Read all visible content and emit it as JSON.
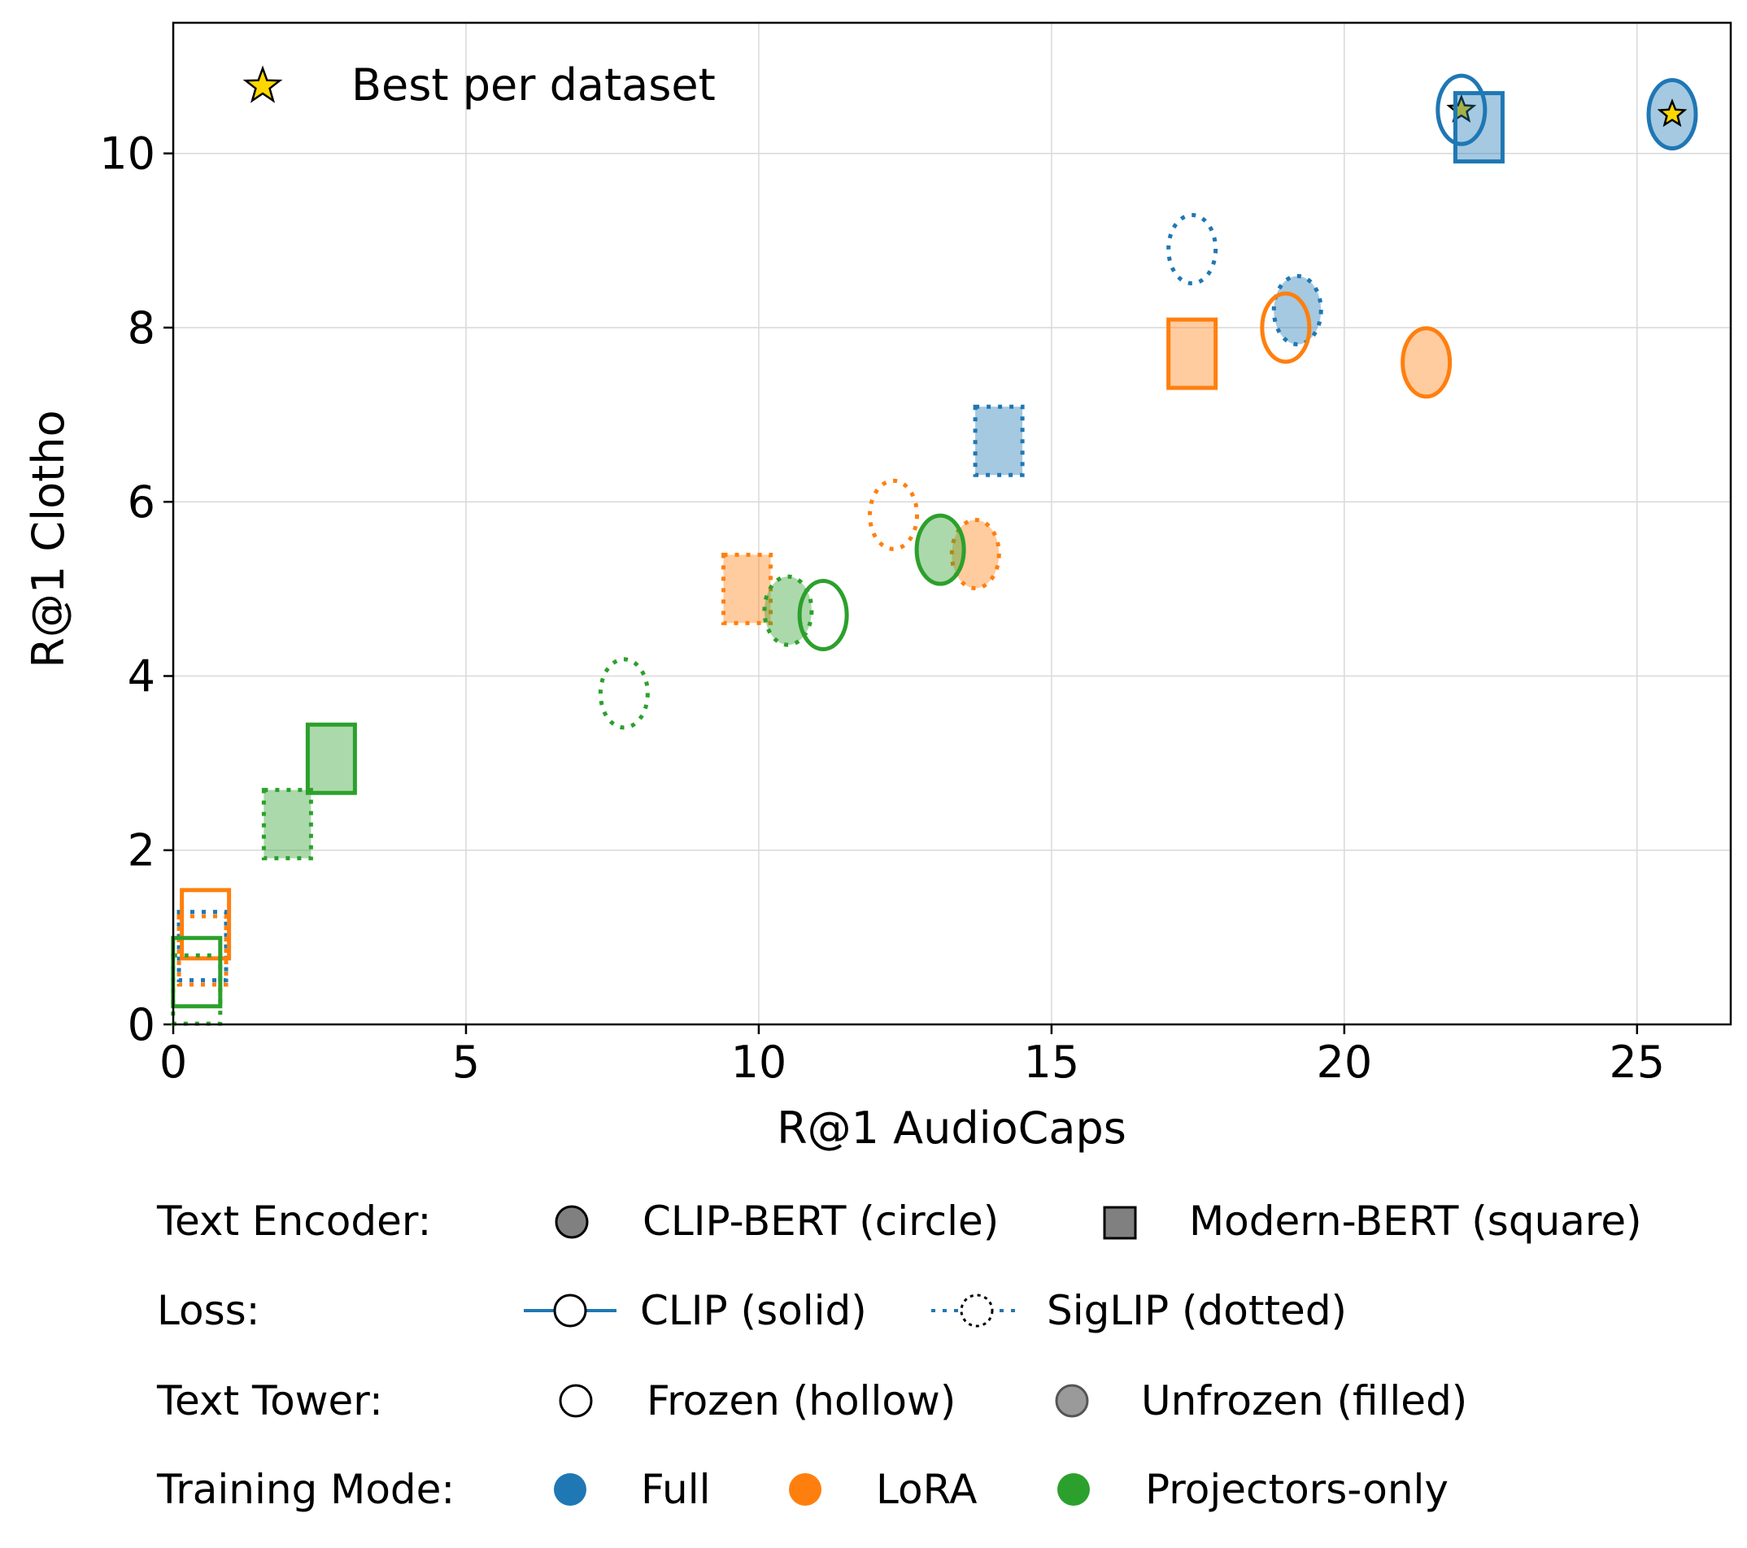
{
  "chart_data": {
    "type": "scatter",
    "title": "",
    "xlabel": "R@1 AudioCaps",
    "ylabel": "R@1 Clotho",
    "xlim": [
      0,
      26.6
    ],
    "ylim": [
      0,
      11.5
    ],
    "xticks": [
      0,
      5,
      10,
      15,
      20,
      25
    ],
    "yticks": [
      0,
      2,
      4,
      6,
      8,
      10
    ],
    "grid": true,
    "best_label": "Best per dataset",
    "colors": {
      "Full": "#1f77b4",
      "LoRA": "#ff7f0e",
      "Projectors-only": "#2ca02c"
    },
    "points": [
      {
        "x": 22.0,
        "y": 10.5,
        "encoder": "CLIP-BERT",
        "loss": "CLIP",
        "tower": "Frozen",
        "mode": "Full",
        "best": true
      },
      {
        "x": 22.3,
        "y": 10.3,
        "encoder": "Modern-BERT",
        "loss": "CLIP",
        "tower": "Unfrozen",
        "mode": "Full",
        "best": false
      },
      {
        "x": 25.6,
        "y": 10.45,
        "encoder": "CLIP-BERT",
        "loss": "CLIP",
        "tower": "Unfrozen",
        "mode": "Full",
        "best": true
      },
      {
        "x": 17.4,
        "y": 8.9,
        "encoder": "CLIP-BERT",
        "loss": "SigLIP",
        "tower": "Frozen",
        "mode": "Full",
        "best": false
      },
      {
        "x": 19.2,
        "y": 8.2,
        "encoder": "CLIP-BERT",
        "loss": "SigLIP",
        "tower": "Unfrozen",
        "mode": "Full",
        "best": false
      },
      {
        "x": 14.1,
        "y": 6.7,
        "encoder": "Modern-BERT",
        "loss": "SigLIP",
        "tower": "Unfrozen",
        "mode": "Full",
        "best": false
      },
      {
        "x": 0.5,
        "y": 0.9,
        "encoder": "Modern-BERT",
        "loss": "SigLIP",
        "tower": "Frozen",
        "mode": "Full",
        "best": false
      },
      {
        "x": 19.0,
        "y": 8.0,
        "encoder": "CLIP-BERT",
        "loss": "CLIP",
        "tower": "Frozen",
        "mode": "LoRA",
        "best": false
      },
      {
        "x": 21.4,
        "y": 7.6,
        "encoder": "CLIP-BERT",
        "loss": "CLIP",
        "tower": "Unfrozen",
        "mode": "LoRA",
        "best": false
      },
      {
        "x": 17.4,
        "y": 7.7,
        "encoder": "Modern-BERT",
        "loss": "CLIP",
        "tower": "Unfrozen",
        "mode": "LoRA",
        "best": false
      },
      {
        "x": 12.3,
        "y": 5.85,
        "encoder": "CLIP-BERT",
        "loss": "SigLIP",
        "tower": "Frozen",
        "mode": "LoRA",
        "best": false
      },
      {
        "x": 13.7,
        "y": 5.4,
        "encoder": "CLIP-BERT",
        "loss": "SigLIP",
        "tower": "Unfrozen",
        "mode": "LoRA",
        "best": false
      },
      {
        "x": 9.8,
        "y": 5.0,
        "encoder": "Modern-BERT",
        "loss": "SigLIP",
        "tower": "Unfrozen",
        "mode": "LoRA",
        "best": false
      },
      {
        "x": 0.55,
        "y": 1.15,
        "encoder": "Modern-BERT",
        "loss": "CLIP",
        "tower": "Frozen",
        "mode": "LoRA",
        "best": false
      },
      {
        "x": 0.5,
        "y": 0.85,
        "encoder": "Modern-BERT",
        "loss": "SigLIP",
        "tower": "Frozen",
        "mode": "LoRA",
        "best": false
      },
      {
        "x": 11.1,
        "y": 4.7,
        "encoder": "CLIP-BERT",
        "loss": "CLIP",
        "tower": "Frozen",
        "mode": "Projectors-only",
        "best": false
      },
      {
        "x": 13.1,
        "y": 5.45,
        "encoder": "CLIP-BERT",
        "loss": "CLIP",
        "tower": "Unfrozen",
        "mode": "Projectors-only",
        "best": false
      },
      {
        "x": 10.5,
        "y": 4.75,
        "encoder": "CLIP-BERT",
        "loss": "SigLIP",
        "tower": "Unfrozen",
        "mode": "Projectors-only",
        "best": false
      },
      {
        "x": 7.7,
        "y": 3.8,
        "encoder": "CLIP-BERT",
        "loss": "SigLIP",
        "tower": "Frozen",
        "mode": "Projectors-only",
        "best": false
      },
      {
        "x": 2.7,
        "y": 3.05,
        "encoder": "Modern-BERT",
        "loss": "CLIP",
        "tower": "Unfrozen",
        "mode": "Projectors-only",
        "best": false
      },
      {
        "x": 1.95,
        "y": 2.3,
        "encoder": "Modern-BERT",
        "loss": "SigLIP",
        "tower": "Unfrozen",
        "mode": "Projectors-only",
        "best": false
      },
      {
        "x": 0.4,
        "y": 0.6,
        "encoder": "Modern-BERT",
        "loss": "CLIP",
        "tower": "Frozen",
        "mode": "Projectors-only",
        "best": false
      },
      {
        "x": 0.4,
        "y": 0.4,
        "encoder": "Modern-BERT",
        "loss": "SigLIP",
        "tower": "Frozen",
        "mode": "Projectors-only",
        "best": false
      }
    ]
  },
  "legend": {
    "text_encoder": {
      "title": "Text Encoder:",
      "circle": "CLIP-BERT (circle)",
      "square": "Modern-BERT (square)"
    },
    "loss": {
      "title": "Loss:",
      "solid": "CLIP (solid)",
      "dotted": "SigLIP (dotted)"
    },
    "text_tower": {
      "title": "Text Tower:",
      "hollow": "Frozen (hollow)",
      "filled": "Unfrozen (filled)"
    },
    "training_mode": {
      "title": "Training Mode:",
      "full": "Full",
      "lora": "LoRA",
      "projectors": "Projectors-only"
    }
  }
}
